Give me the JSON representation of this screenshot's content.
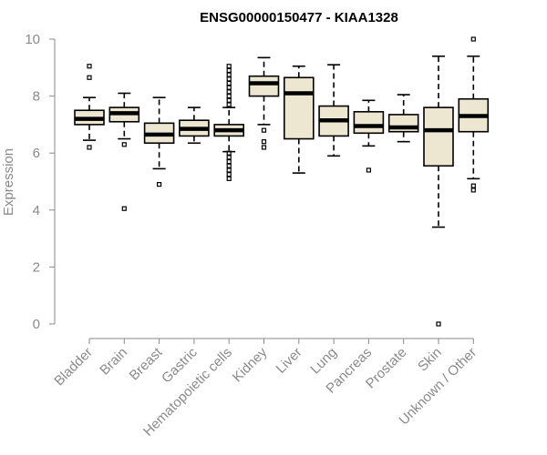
{
  "chart_data": {
    "type": "box",
    "title": "ENSG00000150477 - KIAA1328",
    "xlabel": "",
    "ylabel": "Expression",
    "ylim": [
      0,
      10
    ],
    "yticks": [
      0,
      2,
      4,
      6,
      8,
      10
    ],
    "categories": [
      "Bladder",
      "Brain",
      "Breast",
      "Gastric",
      "Hematopoietic cells",
      "Kidney",
      "Liver",
      "Lung",
      "Pancreas",
      "Prostate",
      "Skin",
      "Unknown / Other"
    ],
    "boxes": [
      {
        "min": 6.45,
        "q1": 7.0,
        "median": 7.2,
        "q3": 7.5,
        "max": 7.95,
        "outliers": [
          6.2,
          8.65,
          9.05
        ]
      },
      {
        "min": 6.5,
        "q1": 7.1,
        "median": 7.4,
        "q3": 7.6,
        "max": 8.1,
        "outliers": [
          6.3,
          4.05
        ]
      },
      {
        "min": 5.45,
        "q1": 6.35,
        "median": 6.65,
        "q3": 7.05,
        "max": 7.95,
        "outliers": [
          4.9
        ]
      },
      {
        "min": 6.35,
        "q1": 6.6,
        "median": 6.85,
        "q3": 7.15,
        "max": 7.6,
        "outliers": []
      },
      {
        "min": 6.05,
        "q1": 6.6,
        "median": 6.8,
        "q3": 7.0,
        "max": 7.6,
        "outliers": [
          5.1,
          5.25,
          5.4,
          5.55,
          5.7,
          5.85,
          6.0,
          7.7,
          7.85,
          8.0,
          8.15,
          8.3,
          8.45,
          8.6,
          8.75,
          8.9,
          9.05
        ]
      },
      {
        "min": 7.0,
        "q1": 8.0,
        "median": 8.45,
        "q3": 8.7,
        "max": 9.35,
        "outliers": [
          6.2,
          6.4,
          6.8
        ]
      },
      {
        "min": 5.3,
        "q1": 6.5,
        "median": 8.1,
        "q3": 8.65,
        "max": 9.05,
        "outliers": []
      },
      {
        "min": 5.9,
        "q1": 6.6,
        "median": 7.15,
        "q3": 7.65,
        "max": 9.1,
        "outliers": []
      },
      {
        "min": 6.25,
        "q1": 6.7,
        "median": 6.95,
        "q3": 7.45,
        "max": 7.85,
        "outliers": [
          5.4
        ]
      },
      {
        "min": 6.4,
        "q1": 6.75,
        "median": 6.9,
        "q3": 7.35,
        "max": 8.05,
        "outliers": []
      },
      {
        "min": 3.4,
        "q1": 5.55,
        "median": 6.8,
        "q3": 7.6,
        "max": 9.4,
        "outliers": [
          0.0
        ]
      },
      {
        "min": 5.1,
        "q1": 6.75,
        "median": 7.3,
        "q3": 7.9,
        "max": 9.4,
        "outliers": [
          4.7,
          4.85,
          10.0
        ]
      }
    ]
  }
}
